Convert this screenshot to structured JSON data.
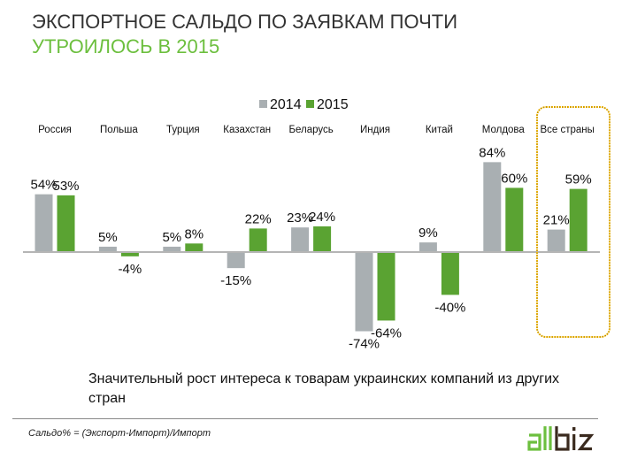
{
  "header": {
    "title_line1": "ЭКСПОРТНОЕ САЛЬДО ПО ЗАЯВКАМ ПОЧТИ",
    "title_line2": "УТРОИЛОСЬ В 2015"
  },
  "chart_data": {
    "type": "bar",
    "title": "ЭКСПОРТНОЕ САЛЬДО ПО ЗАЯВКАМ ПОЧТИ УТРОИЛОСЬ В 2015",
    "xlabel": "",
    "ylabel": "",
    "ylim": [
      -80,
      90
    ],
    "grid": false,
    "legend_position": "top-center",
    "categories": [
      "Россия",
      "Польша",
      "Турция",
      "Казахстан",
      "Беларусь",
      "Индия",
      "Китай",
      "Молдова",
      "Все страны"
    ],
    "series": [
      {
        "name": "2014",
        "color": "#a9afb2",
        "values": [
          54,
          5,
          5,
          -15,
          23,
          -74,
          9,
          84,
          21
        ],
        "labels": [
          "54%",
          "5%",
          "5%",
          "-15%",
          "23%",
          "-74%",
          "9%",
          "84%",
          "21%"
        ]
      },
      {
        "name": "2015",
        "color": "#5aa332",
        "values": [
          53,
          -4,
          8,
          22,
          24,
          -64,
          -40,
          60,
          59
        ],
        "labels": [
          "53%",
          "-4%",
          "8%",
          "22%",
          "24%",
          "-64%",
          "-40%",
          "60%",
          "59%"
        ]
      }
    ],
    "highlighted_category": "Все страны",
    "highlight_color": "#f5b800"
  },
  "caption": "Значительный рост интереса к товарам украинских компаний из других стран",
  "footer": {
    "formula": "Сальдо% = (Экспорт-Импорт)/Импорт",
    "logo_text": "allbiz",
    "logo_colors": {
      "all": "#6cbf3e",
      "biz": "#3a2a1e"
    }
  }
}
